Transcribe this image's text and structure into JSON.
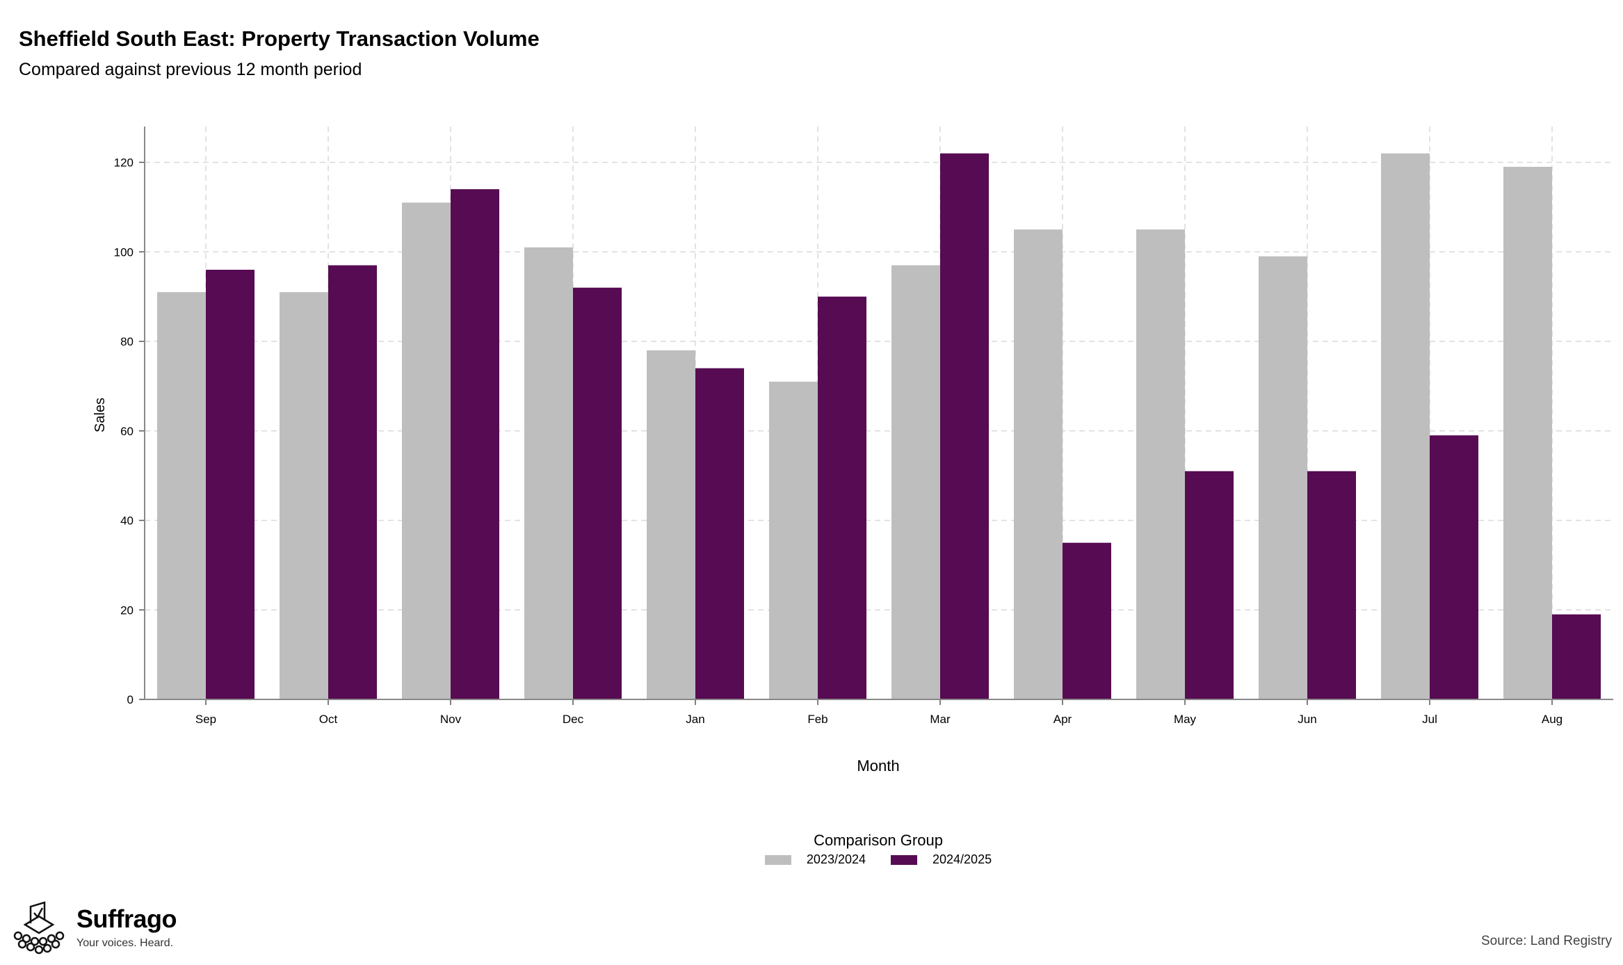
{
  "header": {
    "title": "Sheffield South East: Property Transaction Volume",
    "subtitle": "Compared against previous 12 month period"
  },
  "legend": {
    "title": "Comparison Group",
    "items": [
      {
        "label": "2023/2024",
        "color": "#bebebe"
      },
      {
        "label": "2024/2025",
        "color": "#560b52"
      }
    ]
  },
  "branding": {
    "name": "Suffrago",
    "tagline": "Your voices. Heard."
  },
  "footer": {
    "source": "Source: Land Registry"
  },
  "chart_data": {
    "type": "bar",
    "title": "Sheffield South East: Property Transaction Volume",
    "subtitle": "Compared against previous 12 month period",
    "xlabel": "Month",
    "ylabel": "Sales",
    "categories": [
      "Sep",
      "Oct",
      "Nov",
      "Dec",
      "Jan",
      "Feb",
      "Mar",
      "Apr",
      "May",
      "Jun",
      "Jul",
      "Aug"
    ],
    "series": [
      {
        "name": "2023/2024",
        "color": "#bebebe",
        "values": [
          91,
          91,
          111,
          101,
          78,
          71,
          97,
          105,
          105,
          99,
          122,
          119
        ]
      },
      {
        "name": "2024/2025",
        "color": "#560b52",
        "values": [
          96,
          97,
          114,
          92,
          74,
          90,
          122,
          35,
          51,
          51,
          59,
          19
        ]
      }
    ],
    "ylim": [
      0,
      128
    ],
    "yticks": [
      0,
      20,
      40,
      60,
      80,
      100,
      120
    ],
    "grid": true,
    "legend_position": "bottom"
  }
}
